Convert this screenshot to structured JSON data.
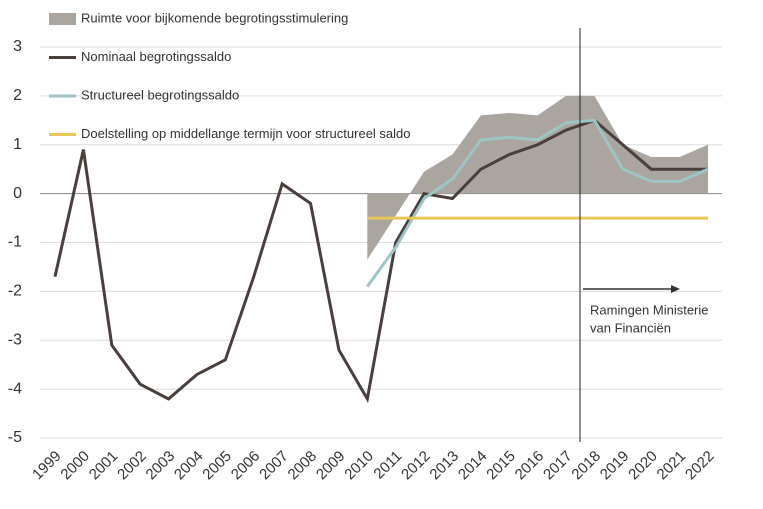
{
  "chart_data": {
    "type": "line",
    "categories": [
      "1999",
      "2000",
      "2001",
      "2002",
      "2003",
      "2004",
      "2005",
      "2006",
      "2007",
      "2008",
      "2009",
      "2010",
      "2011",
      "2012",
      "2013",
      "2014",
      "2015",
      "2016",
      "2017",
      "2018",
      "2019",
      "2020",
      "2021",
      "2022"
    ],
    "series": [
      {
        "name": "Ruimte voor bijkomende begrotingsstimulering",
        "type": "area",
        "color": "#aaa59f",
        "values": [
          null,
          null,
          null,
          null,
          null,
          null,
          null,
          null,
          null,
          null,
          null,
          -1.35,
          -0.45,
          0.45,
          0.8,
          1.6,
          1.65,
          1.6,
          2.0,
          2.0,
          1.0,
          0.75,
          0.75,
          1.0
        ]
      },
      {
        "name": "Nominaal begrotingssaldo",
        "type": "line",
        "color": "#4a3f3c",
        "values": [
          -1.7,
          0.9,
          -3.1,
          -3.9,
          -4.2,
          -3.7,
          -3.4,
          -1.7,
          0.2,
          -0.2,
          -3.2,
          -4.2,
          -1.0,
          0.0,
          -0.1,
          0.5,
          0.8,
          1.0,
          1.3,
          1.5,
          1.0,
          0.5,
          0.5,
          0.5
        ]
      },
      {
        "name": "Structureel begrotingssaldo",
        "type": "line",
        "color": "#9cc5c5",
        "values": [
          null,
          null,
          null,
          null,
          null,
          null,
          null,
          null,
          null,
          null,
          null,
          -1.9,
          -1.1,
          -0.1,
          0.3,
          1.1,
          1.15,
          1.1,
          1.45,
          1.5,
          0.5,
          0.25,
          0.25,
          0.5
        ]
      },
      {
        "name": "Doelstelling op middellange termijn voor structureel saldo",
        "type": "line",
        "color": "#e8c65a",
        "values": [
          null,
          null,
          null,
          null,
          null,
          null,
          null,
          null,
          null,
          null,
          null,
          -0.5,
          -0.5,
          -0.5,
          -0.5,
          -0.5,
          -0.5,
          -0.5,
          -0.5,
          -0.5,
          -0.5,
          -0.5,
          -0.5,
          -0.5
        ]
      }
    ],
    "annotations": [
      "Ramingen Ministerie",
      "van Financiën"
    ],
    "ylim": [
      -5,
      3
    ],
    "yticks": [
      -5,
      -4,
      -3,
      -2,
      -1,
      0,
      1,
      2,
      3
    ],
    "grid": true,
    "legend": "top-left"
  }
}
